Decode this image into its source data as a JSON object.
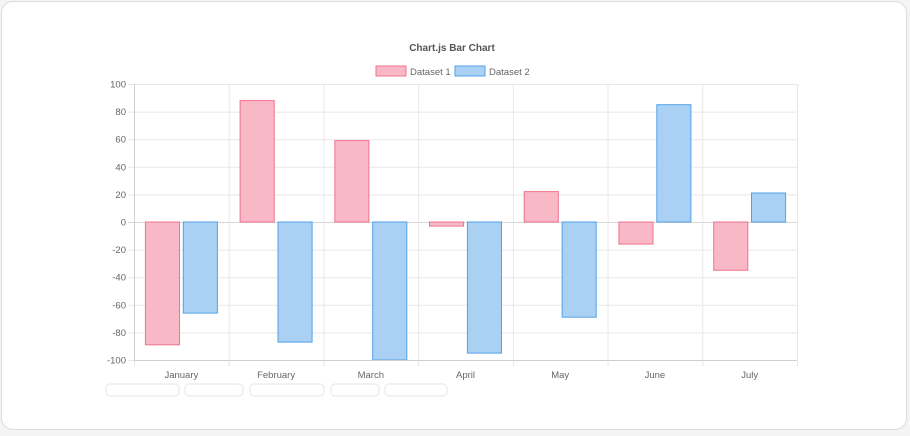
{
  "chart_data": {
    "type": "bar",
    "title": "Chart.js Bar Chart",
    "categories": [
      "January",
      "February",
      "March",
      "April",
      "May",
      "June",
      "July"
    ],
    "series": [
      {
        "name": "Dataset 1",
        "values": [
          -89,
          88,
          59,
          -3,
          22,
          -16,
          -35
        ],
        "fill": "#f8b8c6",
        "stroke": "#f0748e"
      },
      {
        "name": "Dataset 2",
        "values": [
          -66,
          -87,
          -100,
          -95,
          -69,
          85,
          21
        ],
        "fill": "#aad1f3",
        "stroke": "#52a2e8"
      }
    ],
    "ylim": [
      -100,
      100
    ],
    "yticks": [
      100,
      80,
      60,
      40,
      20,
      0,
      -20,
      -40,
      -60,
      -80,
      -100
    ],
    "grid": true,
    "legend_position": "top"
  },
  "colors": {
    "grid": "#e8e8e8",
    "axis": "#cfcfcf"
  }
}
